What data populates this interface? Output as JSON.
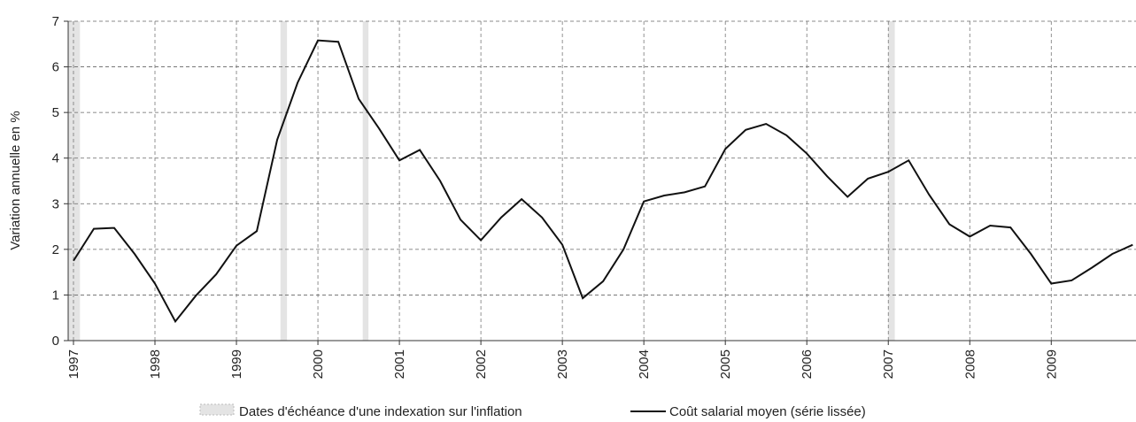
{
  "chart_data": {
    "type": "line",
    "y_label": "Variation annuelle en %",
    "x": [
      1997,
      1997.25,
      1997.5,
      1997.75,
      1998,
      1998.25,
      1998.5,
      1998.75,
      1999,
      1999.25,
      1999.5,
      1999.75,
      2000,
      2000.25,
      2000.5,
      2000.75,
      2001,
      2001.25,
      2001.5,
      2001.75,
      2002,
      2002.25,
      2002.5,
      2002.75,
      2003,
      2003.25,
      2003.5,
      2003.75,
      2004,
      2004.25,
      2004.5,
      2004.75,
      2005,
      2005.25,
      2005.5,
      2005.75,
      2006,
      2006.25,
      2006.5,
      2006.75,
      2007,
      2007.25,
      2007.5,
      2007.75,
      2008,
      2008.25,
      2008.5,
      2008.75,
      2009,
      2009.25,
      2009.5,
      2009.75,
      2010
    ],
    "series": [
      {
        "name": "Coût salarial moyen (série lissée)",
        "color": "#111111",
        "values": [
          1.75,
          2.45,
          2.47,
          1.9,
          1.25,
          0.42,
          0.98,
          1.45,
          2.08,
          2.4,
          4.4,
          5.65,
          6.58,
          6.55,
          5.3,
          4.65,
          3.95,
          4.18,
          3.5,
          2.65,
          2.2,
          2.7,
          3.1,
          2.7,
          2.1,
          0.93,
          1.3,
          2.0,
          3.05,
          3.18,
          3.25,
          3.38,
          4.2,
          4.62,
          4.75,
          4.5,
          4.1,
          3.6,
          3.15,
          3.55,
          3.7,
          3.95,
          3.2,
          2.55,
          2.28,
          2.52,
          2.48,
          1.9,
          1.25,
          1.32,
          1.6,
          1.9,
          2.1
        ]
      }
    ],
    "bands": {
      "name": "Dates d'échéance d'une indexation sur l'inflation",
      "color": "#e4e4e4",
      "ranges": [
        [
          1996.94,
          1997.08
        ],
        [
          1999.54,
          1999.62
        ],
        [
          2000.55,
          2000.62
        ],
        [
          2007.0,
          2007.08
        ]
      ]
    },
    "xlim": [
      1996.935,
      2010.04
    ],
    "xticks": [
      1997,
      1998,
      1999,
      2000,
      2001,
      2002,
      2003,
      2004,
      2005,
      2006,
      2007,
      2008,
      2009
    ],
    "ylim": [
      0,
      7
    ],
    "yticks": [
      0,
      1,
      2,
      3,
      4,
      5,
      6,
      7
    ],
    "grid": true,
    "legend": "bottom"
  }
}
